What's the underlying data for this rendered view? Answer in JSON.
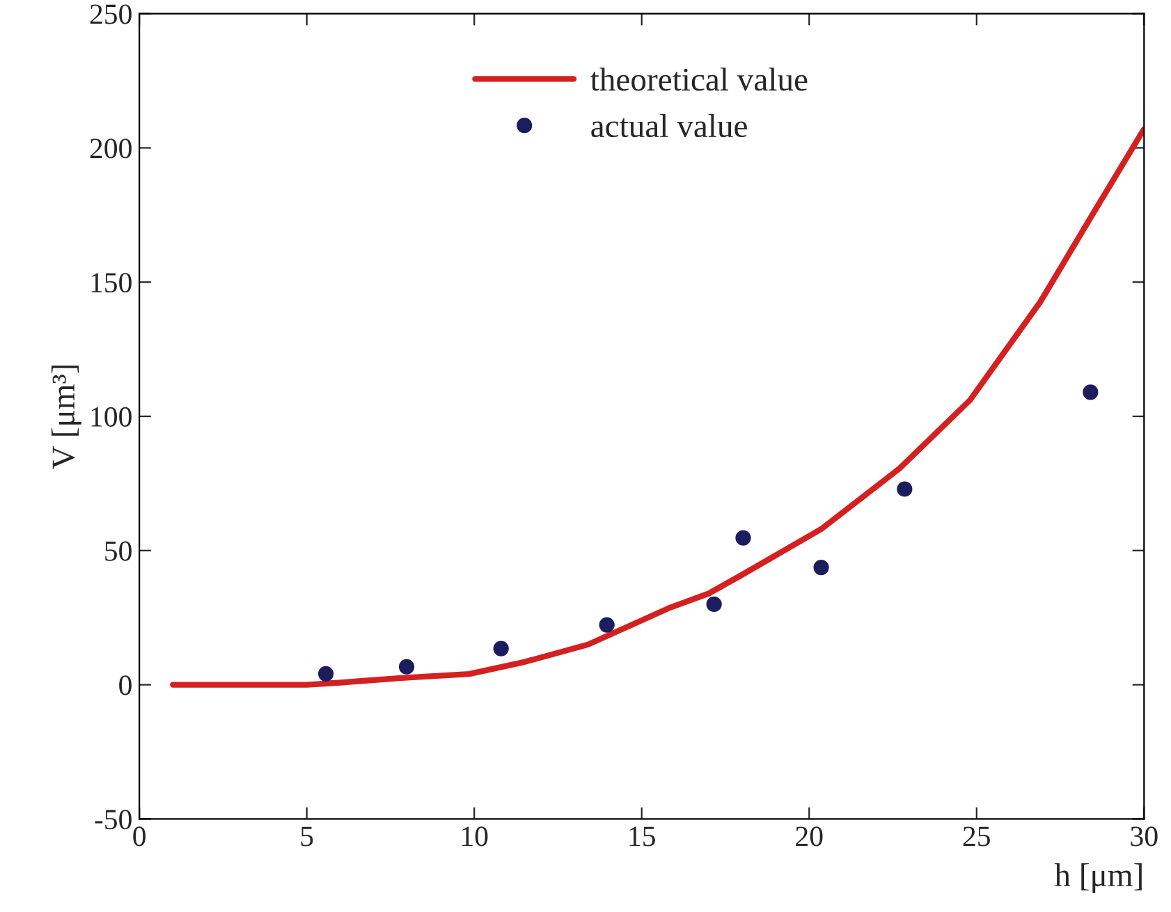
{
  "chart_data": {
    "type": "scatter",
    "xlabel": "h [μm]",
    "ylabel": "V [μm³]",
    "xlim": [
      0,
      30
    ],
    "ylim": [
      -50,
      250
    ],
    "xticks": [
      0,
      5,
      10,
      15,
      20,
      25,
      30
    ],
    "yticks": [
      -50,
      0,
      50,
      100,
      150,
      200,
      250
    ],
    "grid": false,
    "legend": "top",
    "series": [
      {
        "name": "theoretical value",
        "type": "line",
        "color": "#d42020",
        "marker": "none",
        "line_style": "solid",
        "x": [
          1,
          3,
          5,
          6,
          7.9,
          9.85,
          11.5,
          13.4,
          15.8,
          17,
          18,
          20.36,
          22.7,
          24.8,
          26.9,
          28.5,
          29.9,
          30
        ],
        "values": [
          0,
          0,
          0,
          0.8,
          2.6,
          4,
          8.5,
          15,
          28.5,
          34,
          41,
          58,
          80.6,
          106,
          142.6,
          176,
          205,
          207
        ]
      },
      {
        "name": "actual value",
        "color": "#1c1c5e",
        "marker": "circle",
        "x": [
          5.57,
          7.98,
          10.8,
          13.96,
          17.16,
          18.03,
          20.36,
          22.85,
          28.4
        ],
        "values": [
          4.1,
          6.7,
          13.5,
          22.3,
          30,
          54.7,
          43.7,
          72.9,
          109
        ]
      }
    ]
  }
}
